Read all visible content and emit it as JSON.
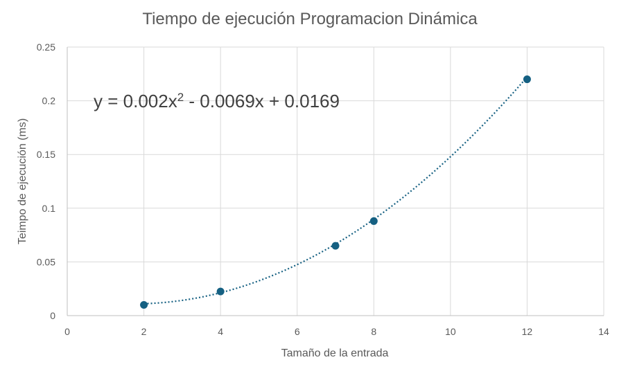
{
  "chart_data": {
    "type": "scatter",
    "title": "Tiempo de ejecución Programacion Dinámica",
    "xlabel": "Tamaño de la entrada",
    "ylabel": "Teimpo de ejecución (ms)",
    "xlim": [
      0,
      14
    ],
    "ylim": [
      0,
      0.25
    ],
    "x_ticks": [
      0,
      2,
      4,
      6,
      8,
      10,
      12,
      14
    ],
    "x_tick_labels": [
      "0",
      "2",
      "4",
      "6",
      "8",
      "10",
      "12",
      "14"
    ],
    "y_ticks": [
      0,
      0.05,
      0.1,
      0.15,
      0.2,
      0.25
    ],
    "y_tick_labels": [
      "0",
      "0.05",
      "0.1",
      "0.15",
      "0.2",
      "0.25"
    ],
    "grid": true,
    "legend": "none",
    "series": [
      {
        "x": [
          2,
          4,
          7,
          8,
          12
        ],
        "y": [
          0.01,
          0.0225,
          0.065,
          0.088,
          0.22
        ],
        "color": "#156082"
      }
    ],
    "trendline": {
      "type": "polynomial",
      "order": 2,
      "coefficients": [
        0.002,
        -0.0069,
        0.0169
      ],
      "x_range": [
        2,
        12
      ],
      "style": "dotted",
      "color": "#156082"
    },
    "annotations": {
      "equation_prefix": "y = 0.002x",
      "equation_exponent": "2",
      "equation_suffix": " - 0.0069x + 0.0169"
    }
  }
}
